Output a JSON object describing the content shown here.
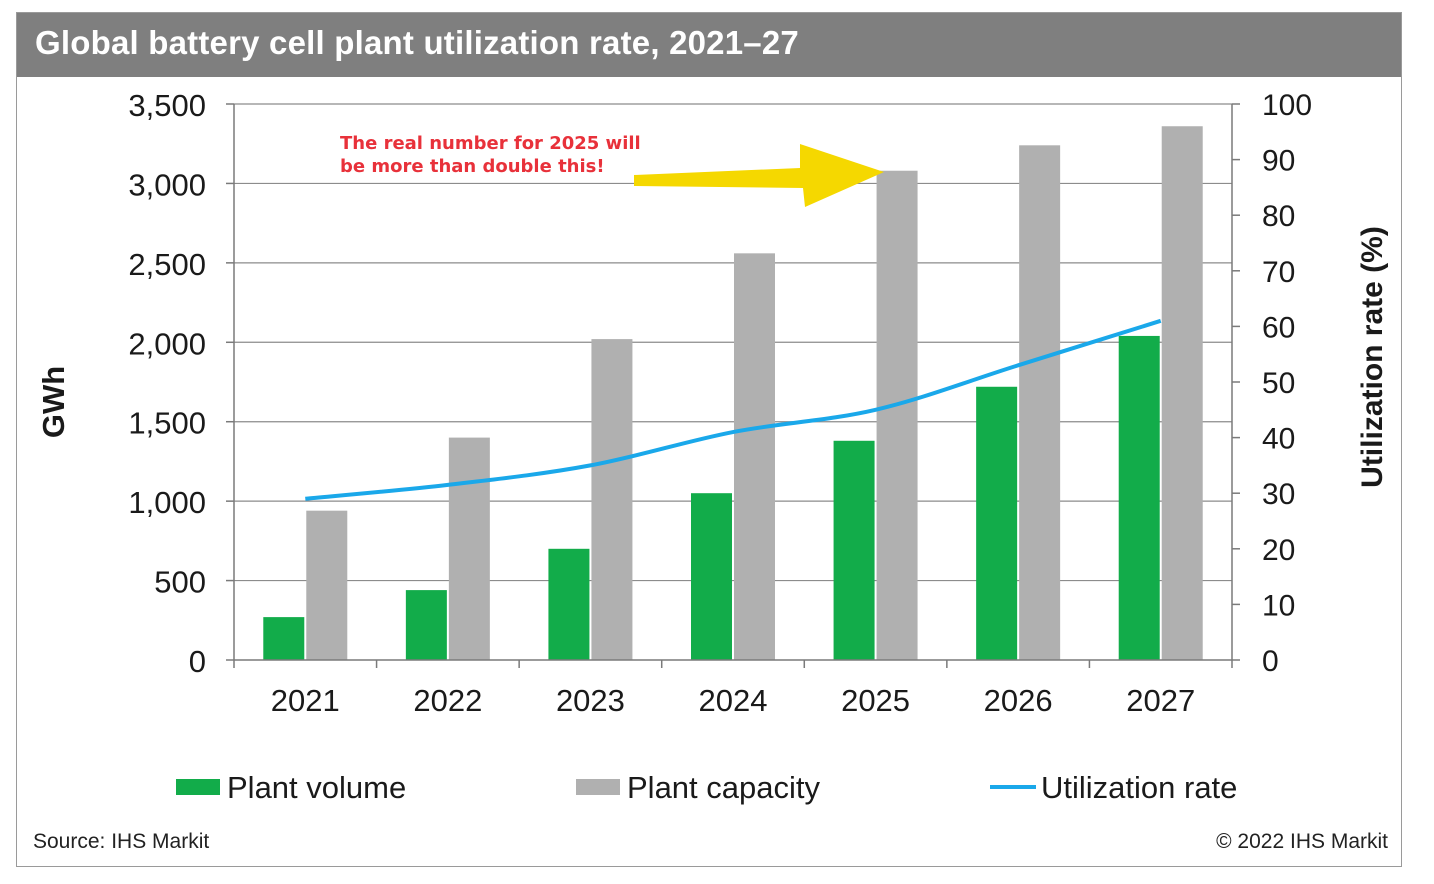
{
  "chart_data": {
    "type": "bar",
    "title": "Global battery cell plant utilization rate, 2021–27",
    "categories": [
      "2021",
      "2022",
      "2023",
      "2024",
      "2025",
      "2026",
      "2027"
    ],
    "series": [
      {
        "name": "Plant volume",
        "type": "bar",
        "axis": "left",
        "color": "#12ac4a",
        "values": [
          270,
          440,
          700,
          1050,
          1380,
          1720,
          2040
        ]
      },
      {
        "name": "Plant capacity",
        "type": "bar",
        "axis": "left",
        "color": "#b0b0b0",
        "values": [
          940,
          1400,
          2020,
          2560,
          3080,
          3240,
          3360
        ]
      },
      {
        "name": "Utilization rate",
        "type": "line",
        "axis": "right",
        "color": "#1aa8ea",
        "values": [
          29,
          31.5,
          35,
          41,
          45,
          53,
          61
        ]
      }
    ],
    "ylabel": "GWh",
    "ylabel_right": "Utilization rate (%)",
    "ylim": [
      0,
      3500
    ],
    "ylim_right": [
      0,
      100
    ],
    "yticks": [
      "0",
      "500",
      "1,000",
      "1,500",
      "2,000",
      "2,500",
      "3,000",
      "3,500"
    ],
    "yticks_right": [
      "0",
      "10",
      "20",
      "30",
      "40",
      "50",
      "60",
      "70",
      "80",
      "90",
      "100"
    ],
    "grid": true,
    "legend_position": "bottom",
    "annotation": {
      "lines": [
        "The real number for 2025 will",
        "be more than double this!"
      ],
      "color": "#e8313a",
      "arrow_color": "#f5d800",
      "target_category": "2025"
    }
  },
  "footer": {
    "source": "Source:  IHS Markit",
    "copyright": "© 2022 IHS Markit"
  }
}
